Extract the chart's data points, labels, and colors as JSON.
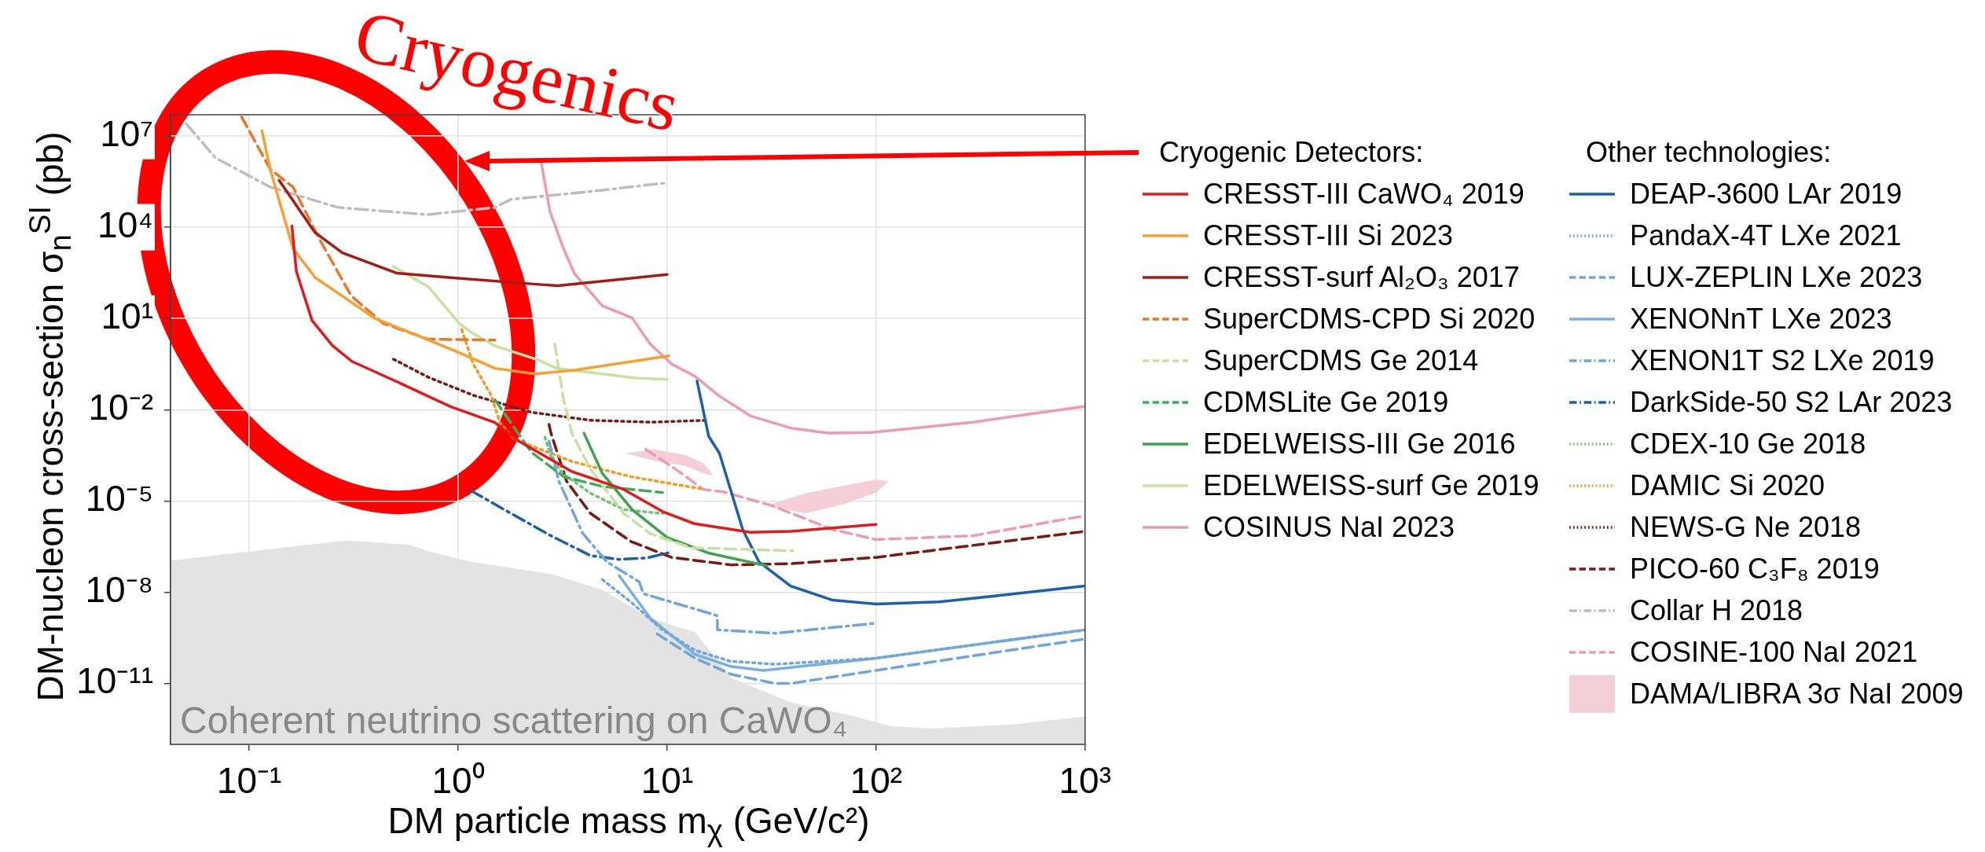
{
  "chart_data": {
    "type": "line",
    "xlabel": "DM particle mass m$_{χ}$ (GeV/c²)",
    "ylabel": "DM-nucleon cross-section σ$_{n}$$^{SI}$ (pb)",
    "legend_title": [
      "Cryogenic Detectors:",
      "Other technologies:"
    ],
    "annotations": [
      "Cryogenics"
    ],
    "log": "xy",
    "grid": true,
    "legend": "right",
    "xlim": [
      0.042,
      1000
    ],
    "ylim": [
      1e-13,
      50000000.0
    ],
    "xticks": [
      {
        "value": 0.1,
        "label": "10⁻¹"
      },
      {
        "value": 1,
        "label": "10⁰"
      },
      {
        "value": 10,
        "label": "10¹"
      },
      {
        "value": 100,
        "label": "10²"
      },
      {
        "value": 1000,
        "label": "10³"
      }
    ],
    "yticks": [
      {
        "value": 1e-11,
        "label": "10⁻¹¹"
      },
      {
        "value": 1e-08,
        "label": "10⁻⁸"
      },
      {
        "value": 1e-05,
        "label": "10⁻⁵"
      },
      {
        "value": 0.01,
        "label": "10⁻²"
      },
      {
        "value": 10,
        "label": "10¹"
      },
      {
        "value": 10000.0,
        "label": "10⁴"
      },
      {
        "value": 10000000.0,
        "label": "10⁷"
      }
    ],
    "series": [
      {
        "name": "CRESST-III CaWO₄ 2019",
        "color": "#e31a1c",
        "line_style": "solid",
        "x": [
          0.16,
          0.168,
          0.2,
          0.25,
          0.31,
          0.51,
          0.92,
          1.5,
          1.95,
          3.5,
          6.2,
          9.5,
          13.5,
          25,
          39,
          100
        ],
        "values": [
          11000.0,
          360,
          8.5,
          1.3,
          0.39,
          0.083,
          0.0126,
          0.0038,
          0.00093,
          9.3e-05,
          2.4e-05,
          4.5e-06,
          1.8e-06,
          9.3e-07,
          1e-06,
          1.7e-06
        ]
      },
      {
        "name": "CRESST-III Si 2023",
        "color": "#f5a031",
        "line_style": "solid",
        "x": [
          0.115,
          0.126,
          0.162,
          0.207,
          0.279,
          0.4,
          0.62,
          1.01,
          1.5,
          2.33,
          3.6,
          10.2
        ],
        "values": [
          15000000.0,
          810000.0,
          2000,
          220,
          55,
          10,
          3,
          0.76,
          0.23,
          0.15,
          0.2,
          0.59
        ]
      },
      {
        "name": "CRESST-surf Al₂O₃ 2017",
        "color": "#a51c12",
        "line_style": "solid",
        "x": [
          0.139,
          0.206,
          0.279,
          0.51,
          0.92,
          2.5,
          3.0,
          10
        ],
        "values": [
          350000.0,
          6800,
          1450,
          310,
          220,
          130,
          120,
          280
        ]
      },
      {
        "name": "SuperCDMS-CPD Si 2020",
        "color": "#e8762b",
        "line_style": "dashed",
        "x": [
          0.092,
          0.126,
          0.162,
          0.217,
          0.308,
          0.436,
          0.716,
          1.5
        ],
        "values": [
          42000000.0,
          810000.0,
          210000.0,
          4000,
          55,
          7,
          2.1,
          1.95
        ]
      },
      {
        "name": "SuperCDMS Ge 2014",
        "color": "#c7e1a1",
        "line_style": "dashed",
        "x": [
          2.9,
          3.2,
          3.5,
          4.3,
          6.2,
          8.3,
          13,
          40
        ],
        "values": [
          1.45,
          0.02,
          0.0017,
          0.00011,
          3.9e-06,
          8.5e-07,
          2.9e-07,
          2.3e-07
        ]
      },
      {
        "name": "CDMSLite Ge 2019",
        "color": "#41ab5d",
        "line_style": "dashed",
        "x": [
          1.5,
          1.86,
          2.24,
          3.2,
          4.9,
          9.5
        ],
        "values": [
          0.021,
          0.0025,
          0.0004,
          6.3e-05,
          3e-05,
          1.9e-05
        ]
      },
      {
        "name": "EDELWEISS-III Ge 2016",
        "color": "#3fa24f",
        "line_style": "solid",
        "x": [
          4,
          4.9,
          6.8,
          10,
          16,
          30
        ],
        "values": [
          0.0017,
          8e-05,
          5.2e-06,
          6.3e-07,
          1.9e-07,
          7.4e-08
        ]
      },
      {
        "name": "EDELWEISS-surf Ge 2019",
        "color": "#c7e1a1",
        "line_style": "solid",
        "x": [
          0.49,
          0.72,
          1.01,
          1.15,
          1.5,
          2.43,
          2.95,
          7.1,
          10
        ],
        "values": [
          510,
          110,
          7,
          3.6,
          1.26,
          0.43,
          0.23,
          0.11,
          0.1
        ]
      },
      {
        "name": "COSINUS NaI 2023",
        "color": "#ef9bae",
        "line_style": "solid",
        "x": [
          2.49,
          2.75,
          3.2,
          3.6,
          4.9,
          6.8,
          8.3,
          10.5,
          13.6,
          17.8,
          25,
          39,
          59,
          95,
          290,
          1000
        ],
        "values": [
          1500000.0,
          33000.0,
          1900,
          300,
          26,
          10.5,
          1.45,
          0.32,
          0.126,
          0.028,
          0.0063,
          0.0025,
          0.0017,
          0.0018,
          0.0039,
          0.013
        ]
      },
      {
        "name": "DEAP-3600 LAr 2019",
        "color": "#1c5fae",
        "line_style": "solid",
        "x": [
          13.9,
          15.8,
          17.8,
          23,
          27.5,
          39,
          62,
          100,
          200,
          450,
          1000
        ],
        "values": [
          0.089,
          0.00135,
          0.00037,
          1.15e-06,
          1e-07,
          1.6e-08,
          5.5e-09,
          4.1e-09,
          4.8e-09,
          8.7e-09,
          1.6e-08
        ]
      },
      {
        "name": "PandaX-4T LXe 2021",
        "color": "#6fa6dc",
        "line_style": "dotted",
        "x": [
          4.9,
          6.7,
          9.5,
          13.5,
          20,
          33,
          100,
          1000
        ],
        "values": [
          2.6e-08,
          4.8e-09,
          5.8e-10,
          1.26e-10,
          5.4e-11,
          4.3e-11,
          6.8e-11,
          5.8e-10
        ]
      },
      {
        "name": "LUX-ZEPLIN LXe 2023",
        "color": "#6fa6dc",
        "line_style": "dashed",
        "x": [
          8.95,
          13.6,
          20.3,
          33,
          39,
          100,
          1000
        ],
        "values": [
          4.3e-10,
          6.8e-11,
          2e-11,
          1e-11,
          1e-11,
          2.7e-11,
          2.9e-10
        ]
      },
      {
        "name": "XENONnT LXe 2023",
        "color": "#7aaee0",
        "line_style": "solid",
        "x": [
          5.9,
          8.3,
          13.6,
          20.3,
          29,
          100,
          1000
        ],
        "values": [
          3.5e-08,
          1.4e-09,
          9.1e-11,
          3.6e-11,
          2.7e-11,
          6.8e-11,
          5.8e-10
        ]
      },
      {
        "name": "XENON1T S2 LXe 2019",
        "color": "#6fa6dc",
        "line_style": "dashdot",
        "x": [
          2.72,
          3.03,
          3.95,
          5.15,
          7.35,
          7.7,
          16.3,
          17.4,
          17.4,
          33,
          98
        ],
        "values": [
          0.00093,
          4.5e-05,
          8.5e-07,
          1e-07,
          2.2e-08,
          8.9e-09,
          1.95e-09,
          1.66e-09,
          5.8e-10,
          4.5e-10,
          9.5e-10
        ]
      },
      {
        "name": "DarkSide-50 S2 LAr 2023",
        "color": "#1c5fae",
        "line_style": "dashdot",
        "x": [
          1.15,
          1.79,
          2.78,
          4.3,
          5.9,
          8.0,
          10.5
        ],
        "values": [
          2.2e-05,
          3.9e-06,
          7.2e-07,
          1.6e-07,
          1.2e-07,
          1.35e-07,
          2.1e-07
        ]
      },
      {
        "name": "CDEX-10 Ge 2018",
        "color": "#74c476",
        "line_style": "dotted",
        "x": [
          2.6,
          2.78,
          3.16,
          4.3,
          6.2,
          9.5
        ],
        "values": [
          0.00126,
          0.00028,
          8.1e-05,
          1.8e-05,
          5.2e-06,
          3.9e-06
        ]
      },
      {
        "name": "DAMIC Si 2020",
        "color": "#f59a1d",
        "line_style": "dotted",
        "x": [
          1.04,
          1.18,
          1.44,
          1.58,
          1.86,
          3.5,
          6.7,
          14.6
        ],
        "values": [
          4.3,
          0.32,
          0.03,
          0.0038,
          0.00107,
          0.0002,
          6.3e-05,
          2.5e-05
        ]
      },
      {
        "name": "NEWS-G Ne 2018",
        "color": "#7a1a12",
        "line_style": "dotted",
        "x": [
          0.49,
          0.72,
          1.18,
          2.23,
          4.3,
          8.3,
          15.5
        ],
        "values": [
          0.46,
          0.117,
          0.03,
          0.0083,
          0.0045,
          0.0039,
          0.0045
        ]
      },
      {
        "name": "PICO-60 C₃F₈ 2019",
        "color": "#7a1a12",
        "line_style": "dashed",
        "x": [
          2.72,
          2.78,
          3.3,
          4.3,
          6.7,
          10.5,
          20.3,
          39,
          100,
          1000
        ],
        "values": [
          0.0033,
          0.0017,
          4.5e-05,
          3.9e-06,
          4.7e-07,
          1.4e-07,
          7.9e-08,
          8.7e-08,
          1.4e-07,
          1e-06
        ]
      },
      {
        "name": "Collar H 2018",
        "color": "#bdbdbd",
        "line_style": "dashdot",
        "x": [
          0.05,
          0.069,
          0.126,
          0.265,
          0.716,
          1.5,
          1.79,
          4.3,
          10
        ],
        "values": [
          25000000.0,
          1900000.0,
          210000.0,
          45000.0,
          26000.0,
          45000.0,
          83000.0,
          150000.0,
          290000.0
        ]
      },
      {
        "name": "COSINE-100 NaI 2021",
        "color": "#ef9bae",
        "line_style": "dashed",
        "x": [
          7.9,
          11,
          14.9,
          18.6,
          31.6,
          62,
          100,
          290,
          1000
        ],
        "values": [
          0.0005,
          0.00011,
          2.4e-05,
          2e-05,
          7.1e-06,
          1.15e-06,
          5.4e-07,
          7.2e-07,
          3.3e-06
        ]
      },
      {
        "name": "DAMA/LIBRA 3σ NaI 2009",
        "type": "area",
        "color": "#f5cfd7",
        "x": [
          6.3,
          8.7,
          12.3,
          15,
          16.6,
          15,
          12.3,
          8.7,
          6.3,
          20,
          30,
          46,
          72,
          100,
          115,
          100,
          72,
          46,
          30
        ],
        "values": [
          0.00037,
          0.0005,
          0.00032,
          0.00017,
          6.9e-05,
          8e-05,
          0.00014,
          0.00021,
          0.00037,
          null,
          7e-06,
          1.8e-05,
          3.3e-05,
          5e-05,
          4.5e-05,
          1.9e-05,
          8.3e-06,
          3.9e-06,
          7e-06
        ]
      },
      {
        "name": "Coherent neutrino scattering on CaWO₄",
        "type": "area",
        "color": "#e3e3e3",
        "x": [
          0.042,
          0.29,
          0.59,
          0.72,
          1.15,
          2.78,
          4.9,
          8.3,
          13.6,
          20.3,
          39,
          79,
          117,
          186,
          450,
          1000
        ],
        "values": [
          1.1e-07,
          5.1e-07,
          3.6e-07,
          2.2e-07,
          1e-07,
          4e-08,
          1.2e-08,
          1.4e-09,
          4.9e-10,
          1.5e-11,
          2.4e-12,
          8.3e-13,
          4e-13,
          3.3e-13,
          4.5e-13,
          8.3e-13
        ]
      }
    ]
  }
}
